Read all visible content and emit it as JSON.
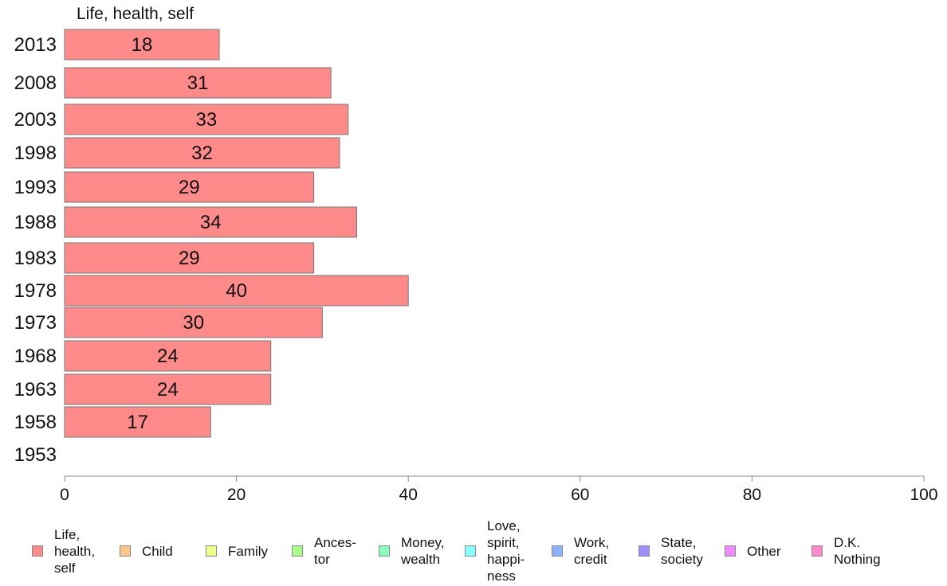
{
  "chart_data": {
    "type": "bar",
    "orientation": "horizontal",
    "title": "",
    "header": "Life, health, self",
    "categories": [
      "2013",
      "2008",
      "2003",
      "1998",
      "1993",
      "1988",
      "1983",
      "1978",
      "1973",
      "1968",
      "1963",
      "1958",
      "1953"
    ],
    "series": [
      {
        "name": "Life, health, self",
        "color": "#ff8a8a",
        "values": [
          18,
          31,
          33,
          32,
          29,
          34,
          29,
          40,
          30,
          24,
          24,
          17,
          null
        ]
      }
    ],
    "xlim": [
      0,
      100
    ],
    "xticks": [
      "0",
      "20",
      "40",
      "60",
      "80",
      "100"
    ],
    "grid": false,
    "legend_position": "bottom"
  },
  "legend": [
    {
      "label": "Life,\nhealth,\nself",
      "color": "#ff8a8a"
    },
    {
      "label": "Child",
      "color": "#ffc58a"
    },
    {
      "label": "Family",
      "color": "#f0ff8a"
    },
    {
      "label": "Ances-\ntor",
      "color": "#a8ff8a"
    },
    {
      "label": "Money,\nwealth",
      "color": "#8affbf"
    },
    {
      "label": "Love,\nspirit,\nhappi-\nness",
      "color": "#8affff"
    },
    {
      "label": "Work,\ncredit",
      "color": "#8ab4ff"
    },
    {
      "label": "State,\nsociety",
      "color": "#a28aff"
    },
    {
      "label": "Other",
      "color": "#f08aff"
    },
    {
      "label": "D.K.\nNothing",
      "color": "#ff8acb"
    }
  ]
}
